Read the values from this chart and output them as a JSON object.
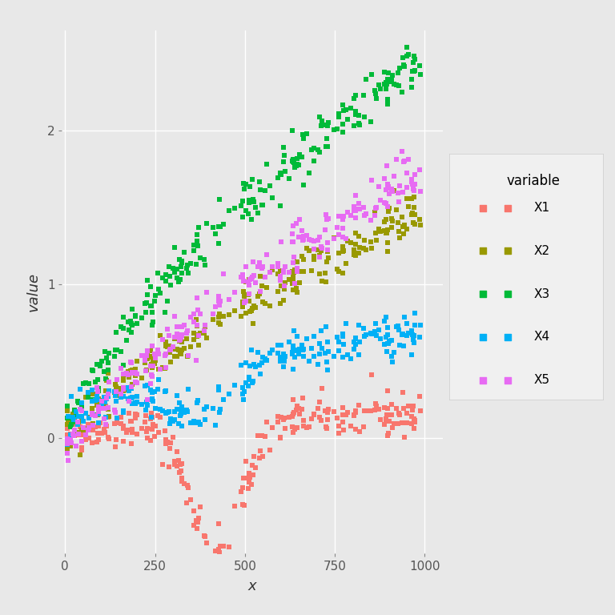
{
  "title": "",
  "xlabel": "x",
  "ylabel": "value",
  "legend_title": "variable",
  "series": [
    "X1",
    "X2",
    "X3",
    "X4",
    "X5"
  ],
  "colors": {
    "X1": "#F8766D",
    "X2": "#999900",
    "X3": "#00BA38",
    "X4": "#00B0F6",
    "X5": "#E76BF3"
  },
  "n_points": 250,
  "x_range": [
    0,
    1000
  ],
  "background_color": "#E8E8E8",
  "panel_background": "#E8E8E8",
  "grid_color": "#FFFFFF",
  "seed": 42,
  "yticks": [
    0,
    1,
    2
  ],
  "ytick_labels": [
    "0 -",
    "1 -",
    "2 -"
  ],
  "xticks": [
    0,
    250,
    500,
    750,
    1000
  ],
  "ylim": [
    -0.75,
    2.65
  ],
  "xlim": [
    -10,
    1050
  ]
}
